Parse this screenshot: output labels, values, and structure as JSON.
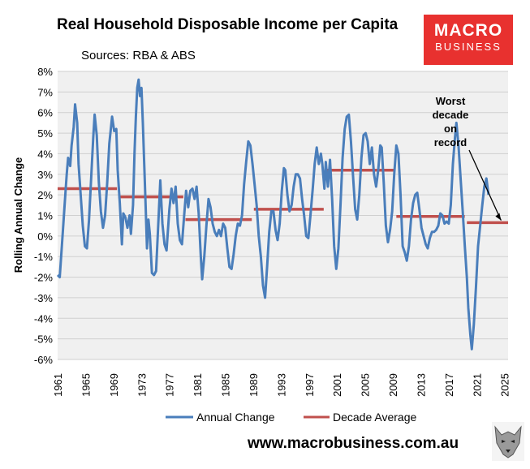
{
  "brand": {
    "line1": "MACRO",
    "line2": "BUSINESS"
  },
  "footer": {
    "url": "www.macrobusiness.com.au"
  },
  "chart_data": {
    "type": "line",
    "title": "Real Household Disposable Income per Capita",
    "subtitle": "Sources: RBA & ABS",
    "ylabel": "Rolling Annual Change",
    "xlabel": "",
    "ylim": [
      -6,
      8
    ],
    "xlim": [
      1961,
      2025.5
    ],
    "yticks": [
      -6,
      -5,
      -4,
      -3,
      -2,
      -1,
      0,
      1,
      2,
      3,
      4,
      5,
      6,
      7,
      8
    ],
    "xticks": [
      1961,
      1965,
      1969,
      1973,
      1977,
      1981,
      1985,
      1989,
      1993,
      1997,
      2001,
      2005,
      2009,
      2013,
      2017,
      2021,
      2025
    ],
    "grid": "horizontal",
    "legend": "bottom",
    "colors": {
      "annual": "#4a7ebb",
      "decade": "#c0504d",
      "plot_bg": "#f0f0f0"
    },
    "annotation": {
      "lines": [
        "Worst",
        "decade",
        "on",
        "record"
      ],
      "points_to": [
        2024.5,
        0.6
      ]
    },
    "series": [
      {
        "name": "Annual Change",
        "kind": "line",
        "points": [
          [
            1961.0,
            -1.9
          ],
          [
            1961.3,
            -2.0
          ],
          [
            1961.6,
            -0.5
          ],
          [
            1962.0,
            1.5
          ],
          [
            1962.3,
            3.0
          ],
          [
            1962.5,
            3.8
          ],
          [
            1962.8,
            3.4
          ],
          [
            1963.0,
            4.4
          ],
          [
            1963.3,
            5.3
          ],
          [
            1963.5,
            6.4
          ],
          [
            1963.8,
            5.5
          ],
          [
            1964.0,
            3.5
          ],
          [
            1964.3,
            2.0
          ],
          [
            1964.6,
            0.5
          ],
          [
            1964.9,
            -0.5
          ],
          [
            1965.2,
            -0.6
          ],
          [
            1965.5,
            0.8
          ],
          [
            1965.8,
            2.8
          ],
          [
            1966.1,
            4.8
          ],
          [
            1966.3,
            5.9
          ],
          [
            1966.6,
            4.9
          ],
          [
            1966.9,
            2.6
          ],
          [
            1967.2,
            1.2
          ],
          [
            1967.5,
            0.4
          ],
          [
            1967.8,
            1.0
          ],
          [
            1968.1,
            2.6
          ],
          [
            1968.4,
            4.5
          ],
          [
            1968.8,
            5.8
          ],
          [
            1969.1,
            5.1
          ],
          [
            1969.4,
            5.2
          ],
          [
            1969.6,
            3.2
          ],
          [
            1969.9,
            1.6
          ],
          [
            1970.2,
            -0.4
          ],
          [
            1970.4,
            1.1
          ],
          [
            1970.7,
            0.9
          ],
          [
            1971.0,
            0.4
          ],
          [
            1971.3,
            1.0
          ],
          [
            1971.5,
            0.1
          ],
          [
            1971.8,
            1.5
          ],
          [
            1972.0,
            4.0
          ],
          [
            1972.2,
            5.8
          ],
          [
            1972.4,
            7.2
          ],
          [
            1972.6,
            7.6
          ],
          [
            1972.8,
            6.8
          ],
          [
            1973.0,
            7.2
          ],
          [
            1973.2,
            5.5
          ],
          [
            1973.4,
            3.5
          ],
          [
            1973.6,
            1.5
          ],
          [
            1973.8,
            -0.6
          ],
          [
            1974.0,
            0.8
          ],
          [
            1974.2,
            0.1
          ],
          [
            1974.5,
            -1.8
          ],
          [
            1974.8,
            -1.9
          ],
          [
            1975.1,
            -1.7
          ],
          [
            1975.4,
            0.5
          ],
          [
            1975.7,
            2.7
          ],
          [
            1976.0,
            0.6
          ],
          [
            1976.3,
            -0.4
          ],
          [
            1976.6,
            -0.7
          ],
          [
            1977.0,
            1.3
          ],
          [
            1977.3,
            2.3
          ],
          [
            1977.6,
            1.6
          ],
          [
            1977.9,
            2.4
          ],
          [
            1978.2,
            0.6
          ],
          [
            1978.5,
            -0.2
          ],
          [
            1978.8,
            -0.4
          ],
          [
            1979.1,
            0.9
          ],
          [
            1979.4,
            2.2
          ],
          [
            1979.7,
            1.4
          ],
          [
            1980.0,
            2.2
          ],
          [
            1980.3,
            2.3
          ],
          [
            1980.6,
            1.8
          ],
          [
            1980.9,
            2.4
          ],
          [
            1981.2,
            1.1
          ],
          [
            1981.5,
            -1.0
          ],
          [
            1981.7,
            -2.1
          ],
          [
            1982.0,
            -1.0
          ],
          [
            1982.3,
            0.5
          ],
          [
            1982.6,
            1.8
          ],
          [
            1982.9,
            1.4
          ],
          [
            1983.2,
            0.6
          ],
          [
            1983.5,
            0.2
          ],
          [
            1983.8,
            0.0
          ],
          [
            1984.1,
            0.3
          ],
          [
            1984.4,
            0.0
          ],
          [
            1984.7,
            0.6
          ],
          [
            1985.0,
            0.4
          ],
          [
            1985.3,
            -0.6
          ],
          [
            1985.6,
            -1.5
          ],
          [
            1985.9,
            -1.6
          ],
          [
            1986.2,
            -0.9
          ],
          [
            1986.5,
            0.0
          ],
          [
            1986.8,
            0.6
          ],
          [
            1987.1,
            0.5
          ],
          [
            1987.4,
            1.0
          ],
          [
            1987.7,
            2.5
          ],
          [
            1988.0,
            3.6
          ],
          [
            1988.3,
            4.6
          ],
          [
            1988.6,
            4.4
          ],
          [
            1988.9,
            3.5
          ],
          [
            1989.2,
            2.5
          ],
          [
            1989.5,
            1.5
          ],
          [
            1989.8,
            0.0
          ],
          [
            1990.1,
            -1.0
          ],
          [
            1990.4,
            -2.4
          ],
          [
            1990.7,
            -3.0
          ],
          [
            1991.0,
            -1.5
          ],
          [
            1991.3,
            0.2
          ],
          [
            1991.6,
            1.2
          ],
          [
            1991.9,
            1.2
          ],
          [
            1992.2,
            0.3
          ],
          [
            1992.5,
            -0.2
          ],
          [
            1992.8,
            0.6
          ],
          [
            1993.1,
            2.2
          ],
          [
            1993.4,
            3.3
          ],
          [
            1993.6,
            3.2
          ],
          [
            1993.9,
            2.0
          ],
          [
            1994.2,
            1.2
          ],
          [
            1994.5,
            1.5
          ],
          [
            1994.8,
            2.4
          ],
          [
            1995.1,
            3.0
          ],
          [
            1995.4,
            3.0
          ],
          [
            1995.7,
            2.8
          ],
          [
            1996.0,
            1.8
          ],
          [
            1996.3,
            1.0
          ],
          [
            1996.6,
            0.0
          ],
          [
            1996.9,
            -0.1
          ],
          [
            1997.2,
            1.0
          ],
          [
            1997.5,
            2.2
          ],
          [
            1997.8,
            3.5
          ],
          [
            1998.1,
            4.3
          ],
          [
            1998.4,
            3.5
          ],
          [
            1998.7,
            4.0
          ],
          [
            1998.9,
            3.5
          ],
          [
            1999.2,
            2.3
          ],
          [
            1999.4,
            3.6
          ],
          [
            1999.7,
            2.4
          ],
          [
            2000.0,
            3.7
          ],
          [
            2000.3,
            1.8
          ],
          [
            2000.6,
            -0.5
          ],
          [
            2000.9,
            -1.6
          ],
          [
            2001.2,
            -0.6
          ],
          [
            2001.5,
            1.5
          ],
          [
            2001.8,
            3.8
          ],
          [
            2002.1,
            5.2
          ],
          [
            2002.4,
            5.8
          ],
          [
            2002.7,
            5.9
          ],
          [
            2003.0,
            4.6
          ],
          [
            2003.3,
            2.9
          ],
          [
            2003.6,
            1.3
          ],
          [
            2003.9,
            0.8
          ],
          [
            2004.2,
            2.0
          ],
          [
            2004.5,
            3.8
          ],
          [
            2004.8,
            4.9
          ],
          [
            2005.1,
            5.0
          ],
          [
            2005.4,
            4.6
          ],
          [
            2005.7,
            3.5
          ],
          [
            2006.0,
            4.3
          ],
          [
            2006.3,
            3.0
          ],
          [
            2006.6,
            2.4
          ],
          [
            2006.9,
            3.2
          ],
          [
            2007.2,
            4.4
          ],
          [
            2007.4,
            4.3
          ],
          [
            2007.7,
            2.6
          ],
          [
            2008.0,
            0.5
          ],
          [
            2008.3,
            -0.3
          ],
          [
            2008.6,
            0.3
          ],
          [
            2008.9,
            1.2
          ],
          [
            2009.2,
            3.0
          ],
          [
            2009.5,
            4.4
          ],
          [
            2009.8,
            4.0
          ],
          [
            2010.1,
            2.0
          ],
          [
            2010.4,
            -0.5
          ],
          [
            2010.7,
            -0.8
          ],
          [
            2011.0,
            -1.2
          ],
          [
            2011.3,
            -0.5
          ],
          [
            2011.6,
            0.8
          ],
          [
            2011.9,
            1.6
          ],
          [
            2012.2,
            2.0
          ],
          [
            2012.5,
            2.1
          ],
          [
            2012.8,
            1.3
          ],
          [
            2013.1,
            0.4
          ],
          [
            2013.4,
            0.0
          ],
          [
            2013.7,
            -0.4
          ],
          [
            2014.0,
            -0.6
          ],
          [
            2014.3,
            -0.1
          ],
          [
            2014.6,
            0.2
          ],
          [
            2014.9,
            0.2
          ],
          [
            2015.2,
            0.3
          ],
          [
            2015.5,
            0.5
          ],
          [
            2015.8,
            1.1
          ],
          [
            2016.1,
            1.0
          ],
          [
            2016.4,
            0.6
          ],
          [
            2016.7,
            0.7
          ],
          [
            2017.0,
            0.6
          ],
          [
            2017.3,
            1.5
          ],
          [
            2017.6,
            3.5
          ],
          [
            2017.9,
            4.8
          ],
          [
            2018.1,
            5.5
          ],
          [
            2018.4,
            4.4
          ],
          [
            2018.7,
            2.8
          ],
          [
            2019.0,
            1.2
          ],
          [
            2019.3,
            -0.5
          ],
          [
            2019.6,
            -2.0
          ],
          [
            2019.8,
            -3.5
          ],
          [
            2020.1,
            -4.8
          ],
          [
            2020.3,
            -5.5
          ],
          [
            2020.6,
            -4.3
          ],
          [
            2020.9,
            -2.5
          ],
          [
            2021.2,
            -0.5
          ],
          [
            2021.5,
            0.5
          ],
          [
            2021.8,
            1.5
          ],
          [
            2022.1,
            2.4
          ],
          [
            2022.4,
            2.8
          ],
          [
            2022.7,
            2.0
          ]
        ]
      },
      {
        "name": "Decade Average",
        "kind": "segments",
        "segments": [
          [
            1961.0,
            1969.5,
            2.3
          ],
          [
            1969.7,
            1979.0,
            1.9
          ],
          [
            1979.3,
            1988.8,
            0.8
          ],
          [
            1989.1,
            1999.1,
            1.3
          ],
          [
            1999.3,
            2009.3,
            3.2
          ],
          [
            2009.5,
            2019.3,
            0.95
          ],
          [
            2019.6,
            2025.5,
            0.65
          ]
        ]
      }
    ]
  }
}
